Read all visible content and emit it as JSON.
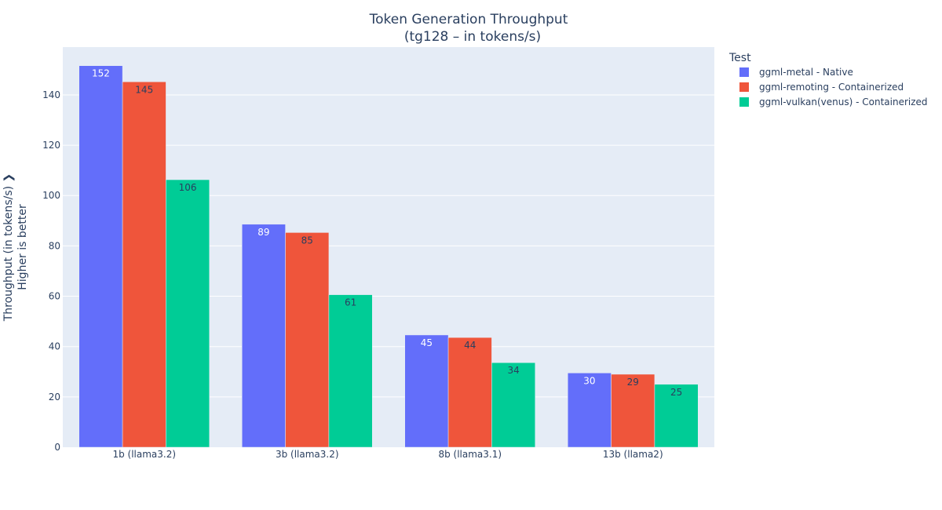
{
  "chart_data": {
    "type": "bar",
    "title": "Token Generation Throughput",
    "subtitle": "(tg128 – in tokens/s)",
    "ylabel": "Throughput (in tokens/s) ❯",
    "ylabel_secondary": "Higher is better",
    "categories": [
      "1b (llama3.2)",
      "3b (llama3.2)",
      "8b (llama3.1)",
      "13b (llama2)"
    ],
    "ylim": [
      0,
      159
    ],
    "yticks": [
      0,
      20,
      40,
      60,
      80,
      100,
      120,
      140
    ],
    "grid": true,
    "legend": {
      "title": "Test",
      "placement": "right"
    },
    "series": [
      {
        "name": "ggml-metal - Native",
        "color": "#636efa",
        "label_color": "#ffffff",
        "values": [
          151.6,
          88.6,
          44.6,
          29.5
        ],
        "labels": [
          "152",
          "89",
          "45",
          "30"
        ]
      },
      {
        "name": "ggml-remoting - Containerized",
        "color": "#ef553b",
        "label_color": "#2a3f5f",
        "values": [
          145.2,
          85.3,
          43.6,
          29.0
        ],
        "labels": [
          "145",
          "85",
          "44",
          "29"
        ]
      },
      {
        "name": "ggml-vulkan(venus) - Containerized",
        "color": "#00cc96",
        "label_color": "#2a3f5f",
        "values": [
          106.3,
          60.6,
          33.6,
          25.0
        ],
        "labels": [
          "106",
          "61",
          "34",
          "25"
        ]
      }
    ],
    "colors": {
      "plot_background": "#e5ecf6",
      "gridline": "#ffffff",
      "text": "#2a3f5f"
    }
  }
}
